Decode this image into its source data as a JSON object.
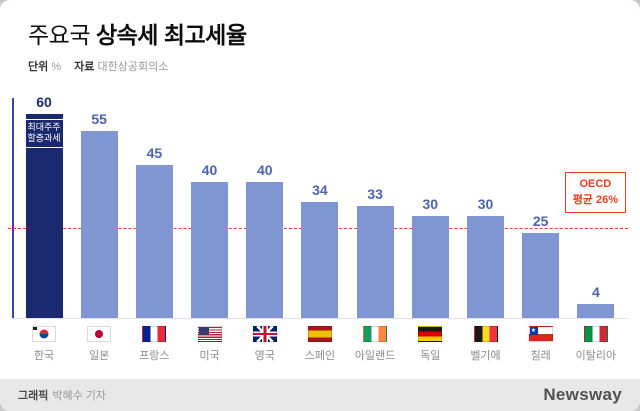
{
  "title": {
    "prefix": "주요국",
    "emphasis": "상속세 최고세율"
  },
  "meta": {
    "unit_label": "단위",
    "unit_value": "%",
    "source_label": "자료",
    "source_value": "대한상공회의소"
  },
  "chart_data": {
    "type": "bar",
    "title": "주요국 상속세 최고세율",
    "unit": "%",
    "source": "대한상공회의소",
    "categories": [
      "한국",
      "일본",
      "프랑스",
      "미국",
      "영국",
      "스페인",
      "아일랜드",
      "독일",
      "벨기에",
      "칠레",
      "이탈리아"
    ],
    "values": [
      60,
      55,
      45,
      40,
      40,
      34,
      33,
      30,
      30,
      25,
      4
    ],
    "flags": [
      "kr",
      "jp",
      "fr",
      "us",
      "gb",
      "es",
      "ie",
      "de",
      "be",
      "cl",
      "it"
    ],
    "ylim": [
      0,
      64
    ],
    "grid": false,
    "legend": false,
    "bar_color": "#8096d2",
    "value_label_color": "#4d63ae",
    "axis_color": "#3447a1",
    "highlight": {
      "index": 0,
      "color": "#1b2a6e",
      "note_lines": [
        "최대주주",
        "할증과세"
      ]
    },
    "reference_line": {
      "value": 26,
      "color": "#ee3b24",
      "label_lines": [
        "OECD",
        "평균 26%"
      ]
    }
  },
  "footer": {
    "credit_label": "그래픽",
    "credit_value": "박혜수 기자",
    "logo": "Newsway"
  }
}
